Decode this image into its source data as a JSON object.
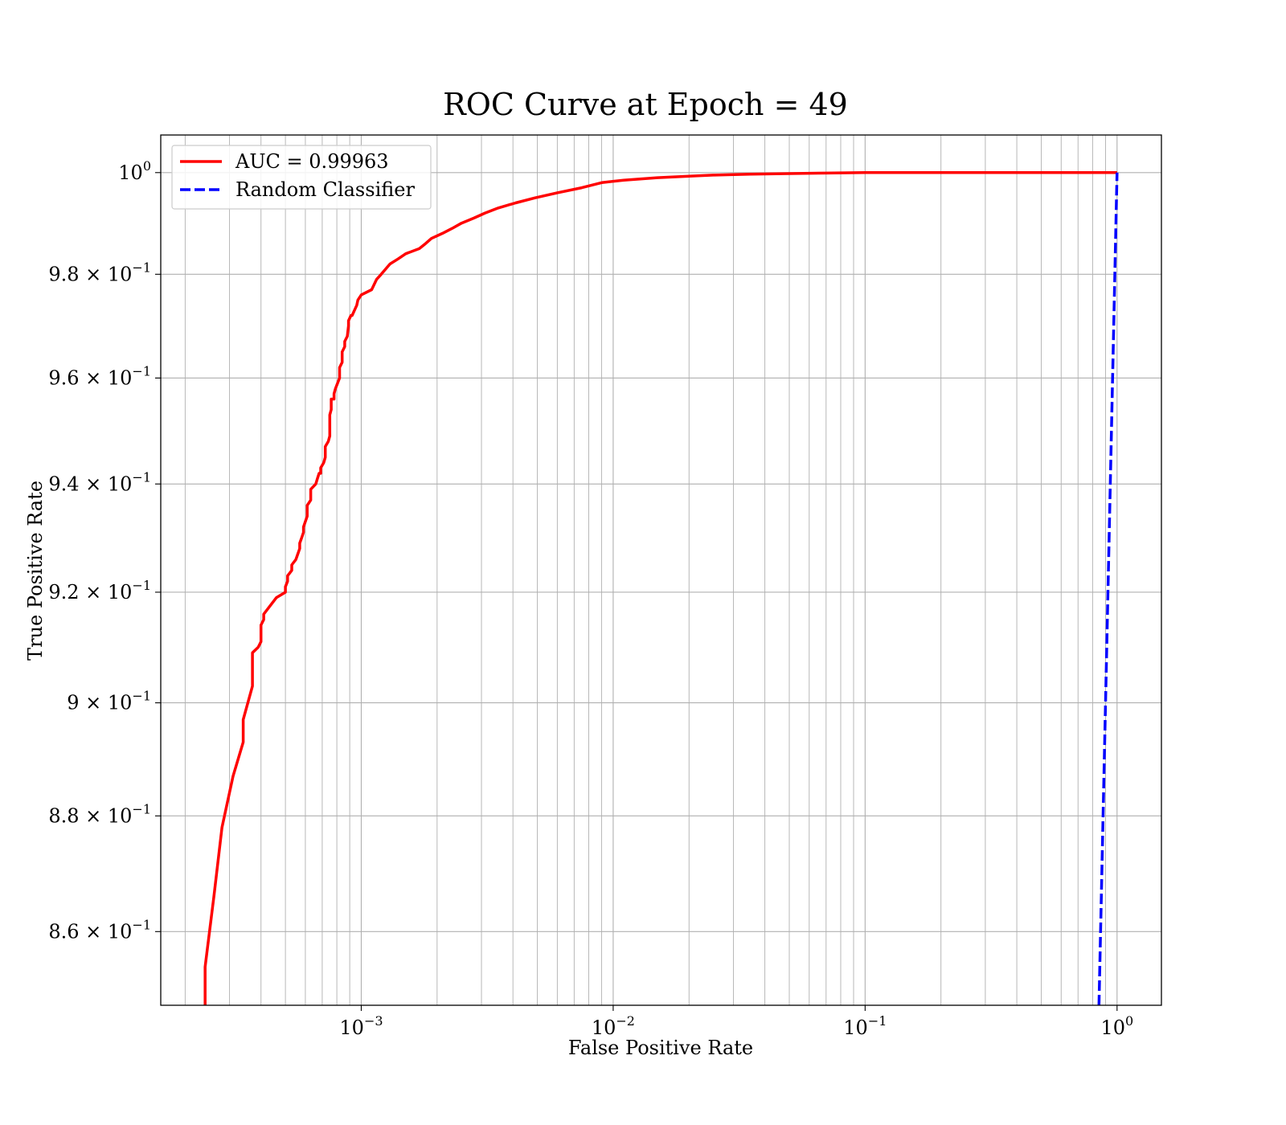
{
  "chart_data": {
    "type": "line",
    "title": "ROC Curve at Epoch = 49",
    "xlabel": "False Positive Rate",
    "ylabel": "True Positive Rate",
    "xscale": "log",
    "yscale": "log",
    "xlim": [
      0.00016,
      1.5
    ],
    "ylim": [
      0.8475,
      1.0075
    ],
    "grid": "both-major-minor",
    "legend_placement": "top-left",
    "x_ticks": [
      {
        "value": 0.001,
        "base": "10",
        "exp": "−3"
      },
      {
        "value": 0.01,
        "base": "10",
        "exp": "−2"
      },
      {
        "value": 0.1,
        "base": "10",
        "exp": "−1"
      },
      {
        "value": 1,
        "base": "10",
        "exp": "0"
      }
    ],
    "y_ticks": [
      {
        "value": 1.0,
        "mant": "",
        "base": "10",
        "exp": "0"
      },
      {
        "value": 0.98,
        "mant": "9.8 × ",
        "base": "10",
        "exp": "−1"
      },
      {
        "value": 0.96,
        "mant": "9.6 × ",
        "base": "10",
        "exp": "−1"
      },
      {
        "value": 0.94,
        "mant": "9.4 × ",
        "base": "10",
        "exp": "−1"
      },
      {
        "value": 0.92,
        "mant": "9.2 × ",
        "base": "10",
        "exp": "−1"
      },
      {
        "value": 0.9,
        "mant": "9 × ",
        "base": "10",
        "exp": "−1"
      },
      {
        "value": 0.88,
        "mant": "8.8 × ",
        "base": "10",
        "exp": "−1"
      },
      {
        "value": 0.86,
        "mant": "8.6 × ",
        "base": "10",
        "exp": "−1"
      }
    ],
    "series": [
      {
        "name": "AUC = 0.99963",
        "color": "#ff0000",
        "style": "solid",
        "x": [
          0.00024,
          0.00024,
          0.00026,
          0.00028,
          0.00031,
          0.00034,
          0.00034,
          0.00037,
          0.00037,
          0.00039,
          0.0004,
          0.0004,
          0.00041,
          0.00041,
          0.00046,
          0.0005,
          0.0005,
          0.00051,
          0.00051,
          0.00053,
          0.00053,
          0.00055,
          0.00056,
          0.00057,
          0.00057,
          0.00058,
          0.00059,
          0.00059,
          0.0006,
          0.00061,
          0.00061,
          0.00063,
          0.00063,
          0.00066,
          0.00067,
          0.00068,
          0.00069,
          0.00069,
          0.00071,
          0.00071,
          0.00072,
          0.00072,
          0.00074,
          0.00075,
          0.00075,
          0.00076,
          0.00076,
          0.00078,
          0.00078,
          0.00079,
          0.00082,
          0.00082,
          0.00084,
          0.00084,
          0.00086,
          0.00086,
          0.00088,
          0.00089,
          0.00089,
          0.00091,
          0.00092,
          0.00094,
          0.00096,
          0.00097,
          0.001,
          0.0011,
          0.00115,
          0.0012,
          0.0013,
          0.0014,
          0.0015,
          0.0017,
          0.0018,
          0.0019,
          0.0021,
          0.0023,
          0.0025,
          0.0028,
          0.0031,
          0.0035,
          0.0041,
          0.0049,
          0.006,
          0.0075,
          0.009,
          0.011,
          0.015,
          0.02,
          0.025,
          0.035,
          0.05,
          0.07,
          0.1,
          0.14,
          0.3,
          0.6,
          1.0
        ],
        "y": [
          0.8475,
          0.854,
          0.866,
          0.878,
          0.887,
          0.893,
          0.897,
          0.903,
          0.909,
          0.91,
          0.911,
          0.914,
          0.915,
          0.916,
          0.919,
          0.92,
          0.921,
          0.922,
          0.923,
          0.924,
          0.925,
          0.926,
          0.927,
          0.928,
          0.929,
          0.93,
          0.931,
          0.932,
          0.933,
          0.934,
          0.936,
          0.937,
          0.939,
          0.94,
          0.941,
          0.942,
          0.942,
          0.943,
          0.944,
          0.944,
          0.945,
          0.947,
          0.948,
          0.949,
          0.953,
          0.954,
          0.956,
          0.956,
          0.957,
          0.958,
          0.96,
          0.962,
          0.963,
          0.965,
          0.966,
          0.967,
          0.968,
          0.97,
          0.971,
          0.972,
          0.972,
          0.973,
          0.974,
          0.975,
          0.976,
          0.977,
          0.979,
          0.98,
          0.982,
          0.983,
          0.984,
          0.985,
          0.986,
          0.987,
          0.988,
          0.989,
          0.99,
          0.991,
          0.992,
          0.993,
          0.994,
          0.995,
          0.996,
          0.997,
          0.998,
          0.9985,
          0.999,
          0.9993,
          0.9995,
          0.9997,
          0.9998,
          0.9999,
          1.0,
          1.0,
          1.0,
          1.0,
          1.0
        ]
      },
      {
        "name": "Random Classifier",
        "color": "#0000ff",
        "style": "dashed",
        "x": [
          0.8475,
          1.0
        ],
        "y": [
          0.8475,
          1.0
        ]
      }
    ]
  }
}
